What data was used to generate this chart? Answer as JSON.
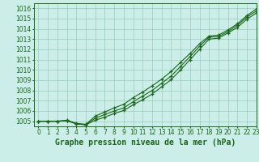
{
  "title": "Graphe pression niveau de la mer (hPa)",
  "bg_color": "#cceee8",
  "grid_color": "#99ccbb",
  "line_color": "#1a6618",
  "xlim": [
    -0.5,
    23
  ],
  "ylim": [
    1004.5,
    1016.5
  ],
  "xticks": [
    0,
    1,
    2,
    3,
    4,
    5,
    6,
    7,
    8,
    9,
    10,
    11,
    12,
    13,
    14,
    15,
    16,
    17,
    18,
    19,
    20,
    21,
    22,
    23
  ],
  "yticks": [
    1005,
    1006,
    1007,
    1008,
    1009,
    1010,
    1011,
    1012,
    1013,
    1014,
    1015,
    1016
  ],
  "series1": {
    "x": [
      0,
      1,
      2,
      3,
      4,
      5,
      6,
      7,
      8,
      9,
      10,
      11,
      12,
      13,
      14,
      15,
      16,
      17,
      18,
      19,
      20,
      21,
      22,
      23
    ],
    "y": [
      1005.0,
      1005.0,
      1005.0,
      1005.05,
      1004.75,
      1004.65,
      1005.1,
      1005.4,
      1005.75,
      1006.05,
      1006.6,
      1007.1,
      1007.65,
      1008.35,
      1009.05,
      1010.0,
      1011.0,
      1012.0,
      1013.0,
      1013.1,
      1013.6,
      1014.15,
      1014.95,
      1015.55
    ]
  },
  "series2": {
    "x": [
      0,
      1,
      2,
      3,
      4,
      5,
      6,
      7,
      8,
      9,
      10,
      11,
      12,
      13,
      14,
      15,
      16,
      17,
      18,
      19,
      20,
      21,
      22,
      23
    ],
    "y": [
      1005.0,
      1005.0,
      1005.0,
      1005.05,
      1004.75,
      1004.65,
      1005.3,
      1005.65,
      1006.0,
      1006.3,
      1006.9,
      1007.45,
      1008.0,
      1008.7,
      1009.4,
      1010.35,
      1011.3,
      1012.3,
      1013.2,
      1013.25,
      1013.75,
      1014.35,
      1015.15,
      1015.75
    ]
  },
  "series3": {
    "x": [
      0,
      1,
      2,
      3,
      4,
      5,
      6,
      7,
      8,
      9,
      10,
      11,
      12,
      13,
      14,
      15,
      16,
      17,
      18,
      19,
      20,
      21,
      22,
      23
    ],
    "y": [
      1005.0,
      1005.0,
      1005.0,
      1005.1,
      1004.8,
      1004.7,
      1005.5,
      1005.9,
      1006.3,
      1006.65,
      1007.3,
      1007.85,
      1008.45,
      1009.1,
      1009.85,
      1010.75,
      1011.6,
      1012.55,
      1013.3,
      1013.4,
      1013.9,
      1014.5,
      1015.3,
      1015.95
    ]
  },
  "title_fontsize": 7,
  "tick_fontsize": 5.5
}
